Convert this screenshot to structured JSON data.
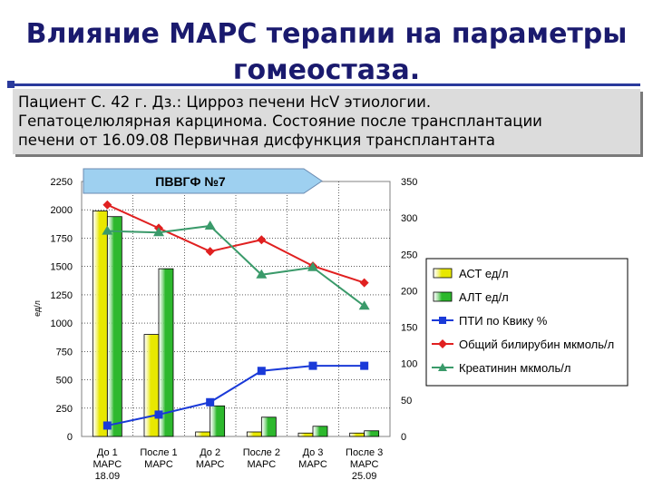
{
  "slide": {
    "title_line1": "Влияние МАРС терапии на параметры",
    "title_line2": "гомеостаза.",
    "patient_line1": "Пациент С. 42 г. Дз.: Цирроз печени HcV этиологии.",
    "patient_line2": "Гепатоцелюлярная карцинома. Состояние после трансплантации",
    "patient_line3": "печени от 16.09.08 Первичная дисфункция трансплантанта"
  },
  "chart_data": {
    "type": "bar",
    "callout": "ПВВГФ №7",
    "ylabel": "ед/л",
    "categories": [
      [
        "До 1",
        "МАРС",
        "18.09"
      ],
      [
        "После 1",
        "МАРС"
      ],
      [
        "До 2",
        "МАРС"
      ],
      [
        "После 2",
        "МАРС"
      ],
      [
        "До 3",
        "МАРС"
      ],
      [
        "После 3",
        "МАРС",
        "25.09"
      ]
    ],
    "y_left": {
      "min": 0,
      "max": 2250,
      "ticks": [
        0,
        250,
        500,
        750,
        1000,
        1250,
        1500,
        1750,
        2000,
        2250
      ]
    },
    "y_right": {
      "min": 0,
      "max": 350,
      "ticks": [
        0,
        50,
        100,
        150,
        200,
        250,
        300,
        350
      ]
    },
    "grid": true,
    "legend_position": "right",
    "series": [
      {
        "name": "АСТ ед/л",
        "type": "bar",
        "axis": "left",
        "color": "#e8e800",
        "values": [
          1990,
          900,
          40,
          40,
          30,
          30
        ]
      },
      {
        "name": "АЛТ ед/л",
        "type": "bar",
        "axis": "left",
        "color": "#2db82d",
        "values": [
          1940,
          1480,
          270,
          170,
          90,
          50
        ]
      },
      {
        "name": "ПТИ по Квику %",
        "type": "line",
        "axis": "right",
        "color": "#1a3ad8",
        "marker": "square",
        "values": [
          15,
          30,
          47,
          90,
          97,
          97
        ]
      },
      {
        "name": "Общий билирубин мкмоль/л",
        "type": "line",
        "axis": "right",
        "color": "#e02020",
        "marker": "diamond",
        "values": [
          318,
          286,
          254,
          270,
          234,
          211
        ]
      },
      {
        "name": "Креатинин мкмоль/л",
        "type": "line",
        "axis": "right",
        "color": "#3a9a6a",
        "marker": "triangle",
        "values": [
          282,
          280,
          289,
          222,
          232,
          179
        ]
      }
    ]
  }
}
